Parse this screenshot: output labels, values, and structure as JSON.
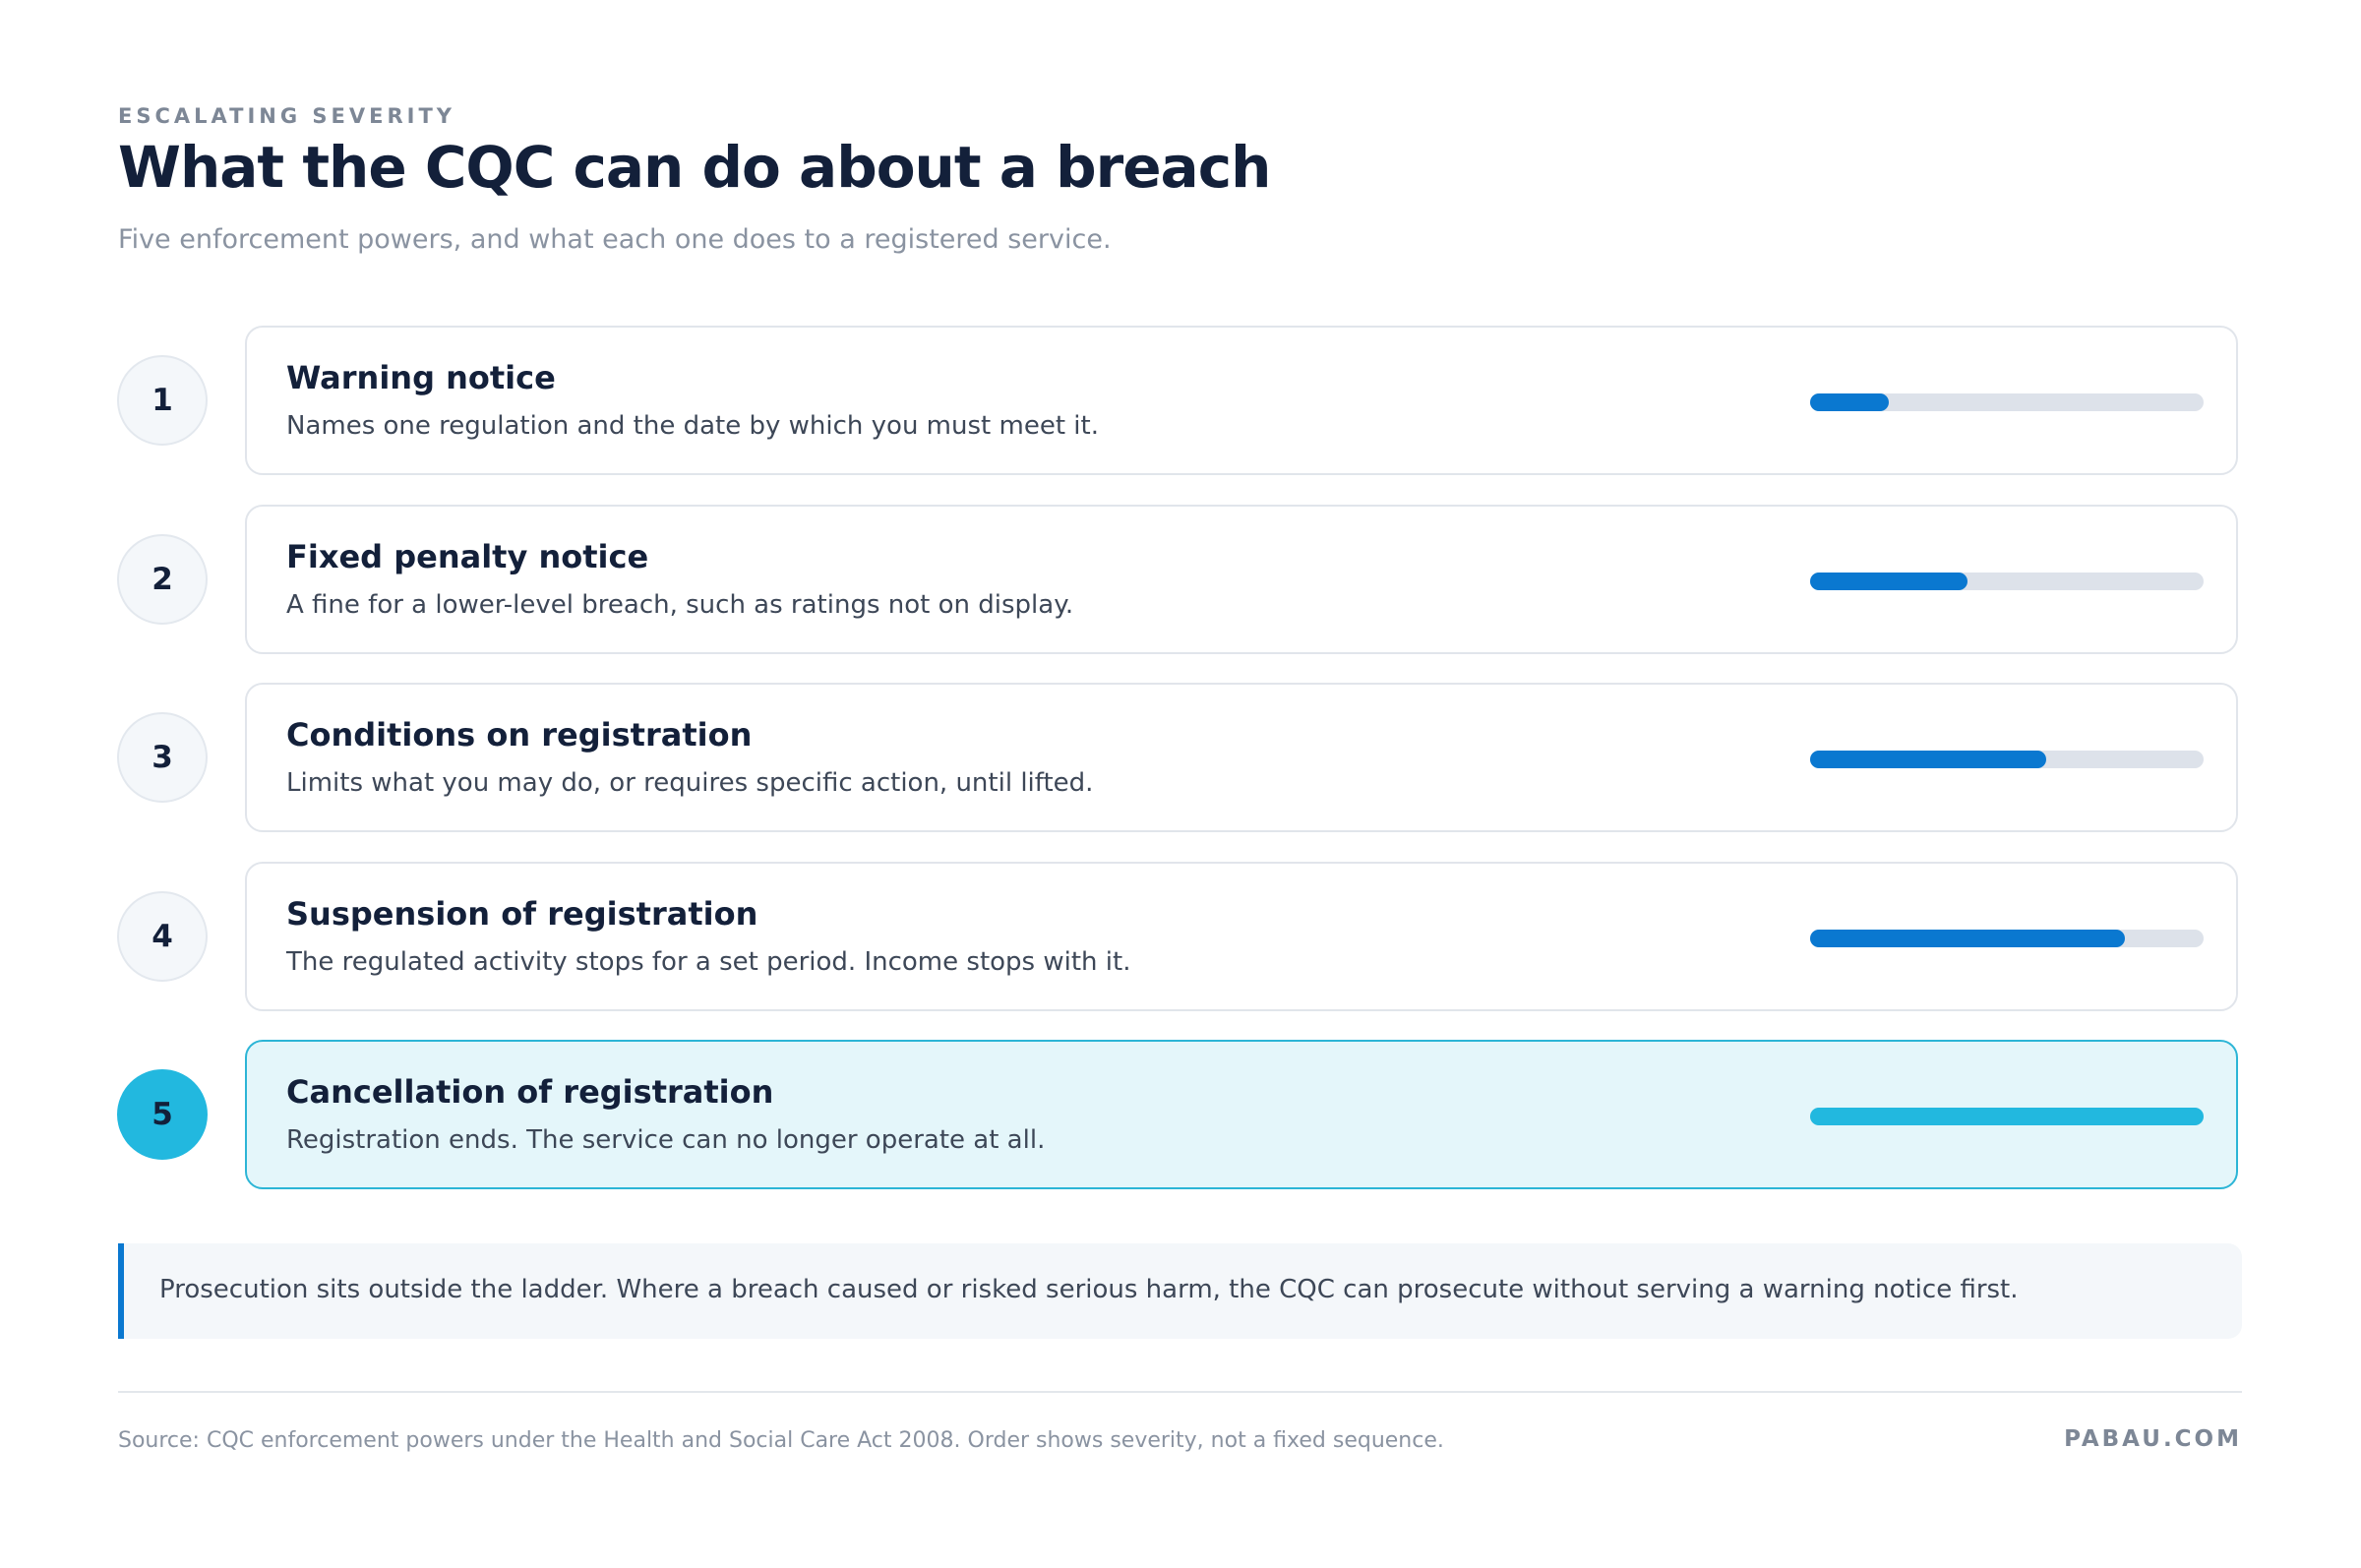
{
  "header": {
    "eyebrow": "ESCALATING SEVERITY",
    "title": "What the CQC can do about a breach",
    "subtitle": "Five enforcement powers, and what each one does to a registered service."
  },
  "severity_scale": [
    0,
    5
  ],
  "items": [
    {
      "number": 1,
      "title": "Warning notice",
      "description": "Names one regulation and the date by which you must meet it.",
      "highlighted": false
    },
    {
      "number": 2,
      "title": "Fixed penalty notice",
      "description": "A fine for a lower-level breach, such as ratings not on display.",
      "highlighted": false
    },
    {
      "number": 3,
      "title": "Conditions on registration",
      "description": "Limits what you may do, or requires specific action, until lifted.",
      "highlighted": false
    },
    {
      "number": 4,
      "title": "Suspension of registration",
      "description": "The regulated activity stops for a set period. Income stops with it.",
      "highlighted": false
    },
    {
      "number": 5,
      "title": "Cancellation of registration",
      "description": "Registration ends. The service can no longer operate at all.",
      "highlighted": true
    }
  ],
  "note": "Prosecution sits outside the ladder. Where a breach caused or risked serious harm, the CQC can prosecute without serving a warning notice first.",
  "footer": {
    "source": "Source: CQC enforcement powers under the Health and Social Care Act 2008. Order shows severity, not a fixed sequence.",
    "brand": "PABAU.COM"
  }
}
